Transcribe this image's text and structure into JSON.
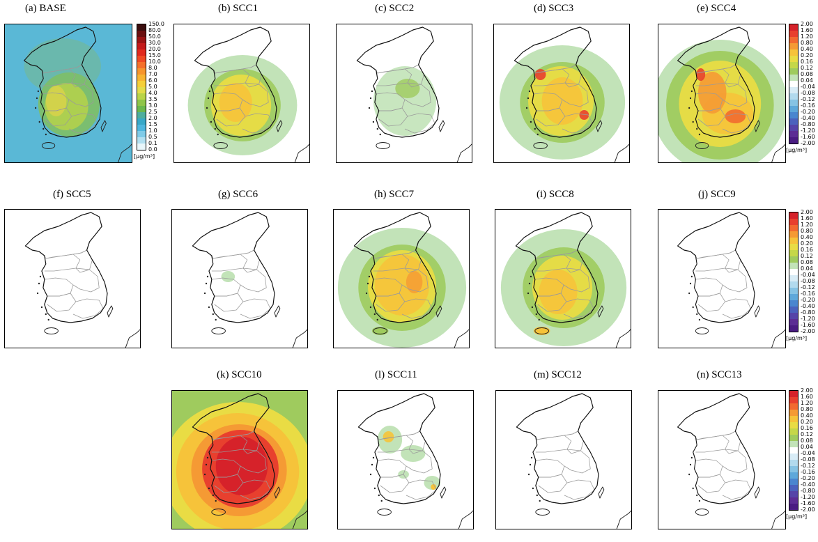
{
  "panels": [
    {
      "id": "a",
      "title": "(a) BASE"
    },
    {
      "id": "b",
      "title": "(b) SCC1"
    },
    {
      "id": "c",
      "title": "(c) SCC2"
    },
    {
      "id": "d",
      "title": "(d) SCC3"
    },
    {
      "id": "e",
      "title": "(e) SCC4"
    },
    {
      "id": "f",
      "title": "(f) SCC5"
    },
    {
      "id": "g",
      "title": "(g) SCC6"
    },
    {
      "id": "h",
      "title": "(h) SCC7"
    },
    {
      "id": "i",
      "title": "(i) SCC8"
    },
    {
      "id": "j",
      "title": "(j) SCC9"
    },
    {
      "id": "k",
      "title": "(k) SCC10"
    },
    {
      "id": "l",
      "title": "(l) SCC11"
    },
    {
      "id": "m",
      "title": "(m) SCC12"
    },
    {
      "id": "n",
      "title": "(n) SCC13"
    }
  ],
  "base_colorbar": {
    "labels": [
      "150.0",
      "80.0",
      "50.0",
      "30.0",
      "20.0",
      "15.0",
      "10.0",
      "8.0",
      "7.0",
      "6.0",
      "5.0",
      "4.0",
      "3.5",
      "3.0",
      "2.5",
      "2.0",
      "1.5",
      "1.0",
      "0.5",
      "0.1",
      "0.0"
    ],
    "colors": [
      "#3a0e0e",
      "#6b1010",
      "#9a1414",
      "#c41a1a",
      "#e02a1e",
      "#ef4a24",
      "#f5702a",
      "#f6952e",
      "#f7b433",
      "#f5cf3a",
      "#e3dc4a",
      "#b9d449",
      "#8fc54a",
      "#6bb84e",
      "#4eae9e",
      "#39a8c8",
      "#4fb6de",
      "#7fcbe8",
      "#b2e0f1",
      "#e8f6fa"
    ],
    "unit": "[μg/m³]"
  },
  "diff_colorbar": {
    "labels": [
      "2.00",
      "1.60",
      "1.20",
      "0.80",
      "0.40",
      "0.20",
      "0.16",
      "0.12",
      "0.08",
      "0.04",
      "-0.04",
      "-0.08",
      "-0.12",
      "-0.16",
      "-0.20",
      "-0.40",
      "-0.80",
      "-1.20",
      "-1.60",
      "-2.00"
    ],
    "colors": [
      "#d6222a",
      "#e8402e",
      "#f26a30",
      "#f59a34",
      "#f6c33a",
      "#e9dc44",
      "#c5d749",
      "#9fcb5e",
      "#c2e3b8",
      "#ffffff",
      "#d8ecf6",
      "#b2daee",
      "#86c3e4",
      "#5ea8da",
      "#4a86cf",
      "#4b62bd",
      "#5544a8",
      "#5c2d94",
      "#4a1c82"
    ],
    "unit": "[μg/m³]"
  }
}
